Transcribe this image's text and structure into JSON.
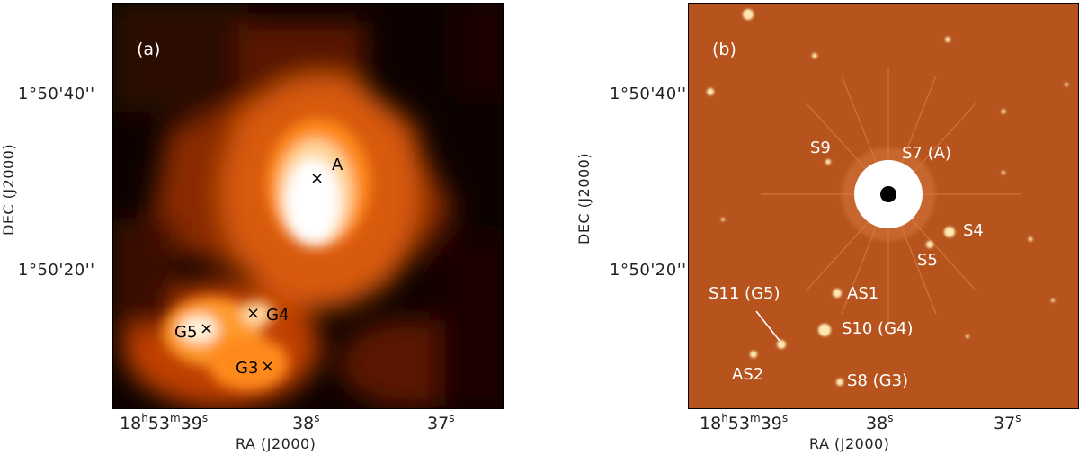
{
  "panel_a": {
    "tag": "(a)",
    "labels": {
      "A": "A",
      "G4": "G4",
      "G5": "G5",
      "G3": "G3"
    },
    "marker_symbol": "×",
    "colors": {
      "bg": "#0d0200",
      "dark": "#3a0c00",
      "mid": "#b23a00",
      "bright": "#ff7a12",
      "hot": "#ffffff"
    }
  },
  "panel_b": {
    "tag": "(b)",
    "labels": {
      "S9": "S9",
      "S7": "S7 (A)",
      "S4": "S4",
      "S5": "S5",
      "AS1": "AS1",
      "S11": "S11 (G5)",
      "S10": "S10 (G4)",
      "AS2": "AS2",
      "S8": "S8 (G3)"
    },
    "colors": {
      "bg": "#b7541e",
      "star": "#ffe8b0",
      "halo": "#ffffff"
    }
  },
  "axes": {
    "ylabel": "DEC (J2000)",
    "xlabel": "RA (J2000)",
    "yticks": [
      "1°50'40''",
      "1°50'20''"
    ],
    "xticks_a": {
      "t1_h": "18",
      "t1_m": "53",
      "t1_s": "39",
      "t2": "38",
      "t3": "37"
    },
    "xticks_b": {
      "t1_h": "18",
      "t1_m": "53",
      "t1_s": "39",
      "t2": "38",
      "t3": "37"
    },
    "units": {
      "h": "h",
      "m": "m",
      "s": "s"
    }
  }
}
